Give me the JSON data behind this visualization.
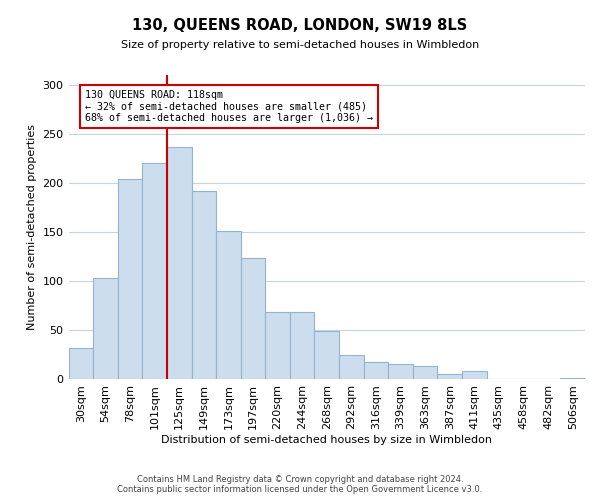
{
  "title": "130, QUEENS ROAD, LONDON, SW19 8LS",
  "subtitle": "Size of property relative to semi-detached houses in Wimbledon",
  "xlabel": "Distribution of semi-detached houses by size in Wimbledon",
  "ylabel": "Number of semi-detached properties",
  "categories": [
    "30sqm",
    "54sqm",
    "78sqm",
    "101sqm",
    "125sqm",
    "149sqm",
    "173sqm",
    "197sqm",
    "220sqm",
    "244sqm",
    "268sqm",
    "292sqm",
    "316sqm",
    "339sqm",
    "363sqm",
    "387sqm",
    "411sqm",
    "435sqm",
    "458sqm",
    "482sqm",
    "506sqm"
  ],
  "values": [
    32,
    103,
    204,
    220,
    237,
    192,
    151,
    124,
    69,
    69,
    49,
    25,
    18,
    16,
    14,
    6,
    9,
    0,
    0,
    0,
    1
  ],
  "bar_color": "#ccdded",
  "bar_edgecolor": "#92b4cf",
  "marker_index": 4,
  "marker_line_color": "#cc0000",
  "annotation_line1": "130 QUEENS ROAD: 118sqm",
  "annotation_line2": "← 32% of semi-detached houses are smaller (485)",
  "annotation_line3": "68% of semi-detached houses are larger (1,036) →",
  "annotation_box_edgecolor": "#cc0000",
  "ylim": [
    0,
    310
  ],
  "yticks": [
    0,
    50,
    100,
    150,
    200,
    250,
    300
  ],
  "footer1": "Contains HM Land Registry data © Crown copyright and database right 2024.",
  "footer2": "Contains public sector information licensed under the Open Government Licence v3.0.",
  "background_color": "#ffffff",
  "grid_color": "#c8d4dc"
}
